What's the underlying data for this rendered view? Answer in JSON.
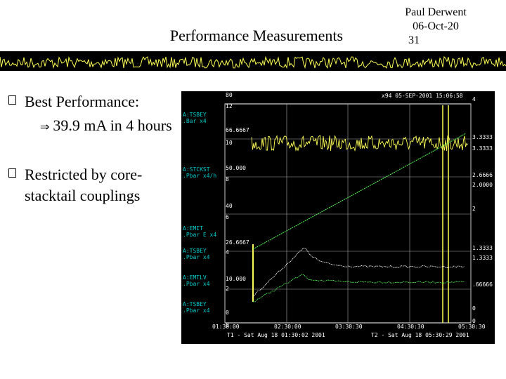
{
  "slide": {
    "title": "Performance Measurements",
    "author": "Paul Derwent",
    "date": "06-Oct-20",
    "page": "31"
  },
  "bullets": [
    {
      "text": "Best Performance:",
      "sub": "39.9 mA in 4 hours"
    },
    {
      "lines": [
        "Restricted by core-",
        "stacktail couplings"
      ]
    }
  ],
  "scope": {
    "header": "x94 05-SEP-2001 15:06:58",
    "footer_t1": "T1 - Sat Aug 18 01:30:02 2001",
    "footer_t2": "T2 - Sat Aug 18 05:30:29 2001",
    "time_labels": [
      "01:30:00",
      "02:30:00",
      "03:30:30",
      "04:30:30",
      "05:30:30"
    ],
    "channel_labels": [
      {
        "name": "A:TSBEY",
        "desc": ".Bar x4"
      },
      {
        "name": "A:STCKST",
        "desc": ".Pbar x4/h"
      },
      {
        "name": "A:EMIT",
        "desc": ".Pbar E x4"
      },
      {
        "name": "A:TSBEY",
        "desc": ".Pbar x4"
      },
      {
        "name": "A:EMTLV",
        "desc": ".Pbar x4"
      },
      {
        "name": "A:TSBEY",
        "desc": ".Pbar x4"
      }
    ],
    "left_values": [
      "80",
      "12",
      "66.6667",
      "10",
      "50.000",
      "8",
      "40",
      "6",
      "26.6667",
      "4",
      "10.000",
      "2",
      "0",
      "0"
    ],
    "right_values": [
      "4",
      "3.3333",
      "3.3333",
      "2.6666",
      "2.0000",
      "2",
      "1.3333",
      "1.3333",
      ".66666",
      "0",
      "0"
    ],
    "colors": {
      "background": "#000000",
      "yellow": "#ffff55",
      "green": "#55ff55",
      "white": "#ffffff",
      "cyan": "#00cccc"
    }
  }
}
